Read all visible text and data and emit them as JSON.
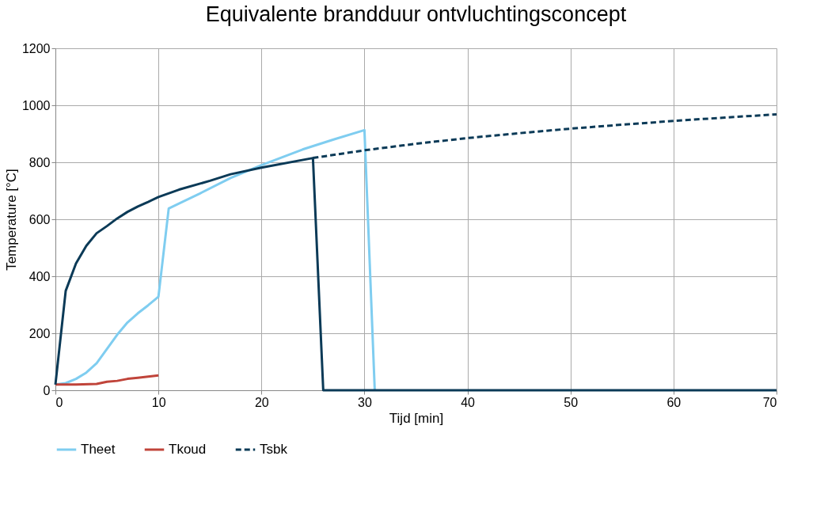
{
  "chart_data": {
    "type": "line",
    "title": "Equivalente brandduur ontvluchtingsconcept",
    "xlabel": "Tijd [min]",
    "ylabel": "Temperature  [°C]",
    "xlim": [
      0,
      70
    ],
    "xticks": [
      0,
      10,
      20,
      30,
      40,
      50,
      60,
      70
    ],
    "ylim": [
      0,
      1200
    ],
    "yticks": [
      0,
      200,
      400,
      600,
      800,
      1000,
      1200
    ],
    "grid": true,
    "legend": "bottom",
    "marker": "none",
    "series": [
      {
        "name": "Theet",
        "color": "#7fcdf0",
        "line_style": "solid",
        "x": [
          0,
          1,
          2,
          3,
          4,
          5,
          6,
          7,
          8,
          9,
          10,
          11,
          14,
          17,
          20,
          24,
          27,
          30,
          31
        ],
        "values": [
          20,
          25,
          40,
          62,
          95,
          145,
          195,
          238,
          270,
          298,
          328,
          638,
          690,
          745,
          790,
          845,
          880,
          913,
          0
        ]
      },
      {
        "name": "Tkoud",
        "color": "#c0443a",
        "line_style": "solid",
        "x": [
          0,
          2,
          4,
          5,
          6,
          7,
          8,
          9,
          10
        ],
        "values": [
          20,
          20,
          22,
          30,
          33,
          40,
          44,
          48,
          52
        ]
      },
      {
        "name": "Tsbk",
        "color": "#0b3a57",
        "line_style": "dashed",
        "x": [
          25,
          30,
          35,
          40,
          45,
          50,
          55,
          60,
          65,
          70
        ],
        "values": [
          815,
          842,
          865,
          885,
          902,
          918,
          932,
          945,
          957,
          968
        ]
      },
      {
        "color": "#0b3a57",
        "line_style": "solid",
        "x": [
          0,
          1,
          2,
          3,
          4,
          5,
          6,
          7,
          8,
          9,
          10,
          12,
          15,
          17,
          20,
          25,
          26,
          70
        ],
        "values": [
          20,
          349,
          445,
          507,
          551,
          576,
          603,
          626,
          645,
          661,
          678,
          704,
          735,
          758,
          781,
          815,
          0,
          0
        ]
      }
    ]
  }
}
